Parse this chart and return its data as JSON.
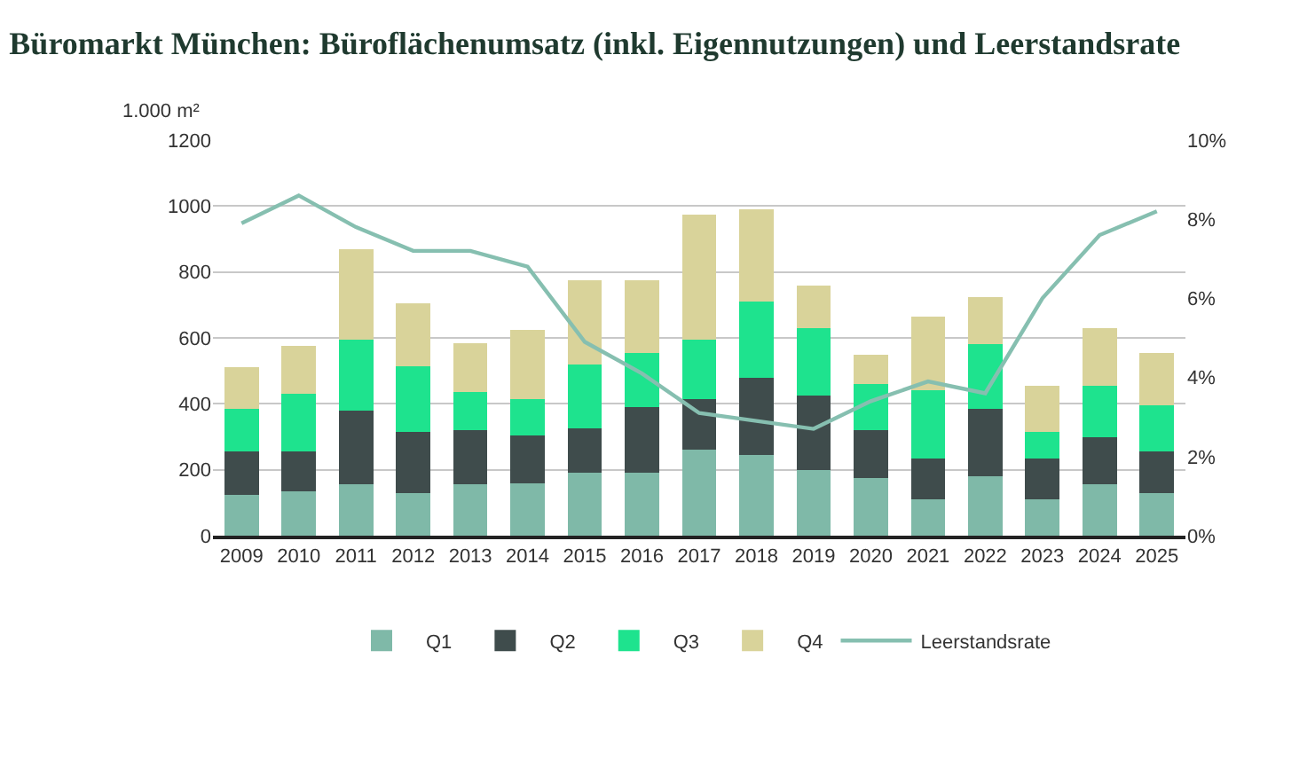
{
  "chart_data": {
    "type": "bar",
    "title": "Büromarkt München: Büroflächenumsatz (inkl. Eigennutzungen) und Leerstandsrate",
    "ylabel": "1.000 m²",
    "categories": [
      "2009",
      "2010",
      "2011",
      "2012",
      "2013",
      "2014",
      "2015",
      "2016",
      "2017",
      "2018",
      "2019",
      "2020",
      "2021",
      "2022",
      "2023",
      "2024",
      "2025"
    ],
    "stacked": true,
    "series": [
      {
        "name": "Q1",
        "color": "#7fb9a8",
        "values": [
          125,
          135,
          155,
          130,
          155,
          160,
          190,
          190,
          260,
          245,
          200,
          175,
          110,
          180,
          110,
          155,
          130
        ]
      },
      {
        "name": "Q2",
        "color": "#3f4c4c",
        "values": [
          130,
          120,
          225,
          185,
          165,
          145,
          135,
          200,
          155,
          235,
          225,
          145,
          125,
          205,
          125,
          145,
          125
        ]
      },
      {
        "name": "Q3",
        "color": "#1ee38e",
        "values": [
          130,
          175,
          215,
          200,
          115,
          110,
          195,
          165,
          180,
          230,
          205,
          140,
          205,
          195,
          80,
          155,
          140
        ]
      },
      {
        "name": "Q4",
        "color": "#d9d39a",
        "values": [
          125,
          145,
          275,
          190,
          150,
          210,
          255,
          220,
          380,
          280,
          130,
          90,
          225,
          145,
          140,
          175,
          160
        ]
      },
      {
        "name": "Leerstandsrate",
        "type": "line",
        "axis": "y2",
        "color": "#86bfb0",
        "values": [
          7.9,
          8.6,
          7.8,
          7.2,
          7.2,
          6.8,
          4.9,
          4.1,
          3.1,
          2.9,
          2.7,
          3.4,
          3.9,
          3.6,
          6.0,
          7.6,
          8.2
        ]
      }
    ],
    "ylim": [
      0,
      1200
    ],
    "yticks": [
      0,
      200,
      400,
      600,
      800,
      1000,
      1200
    ],
    "y2lim": [
      0,
      10
    ],
    "y2ticks": [
      {
        "value": 0,
        "label": "0%"
      },
      {
        "value": 2,
        "label": "2%"
      },
      {
        "value": 4,
        "label": "4%"
      },
      {
        "value": 6,
        "label": "6%"
      },
      {
        "value": 8,
        "label": "8%"
      },
      {
        "value": 10,
        "label": "10%"
      }
    ],
    "grid": "y",
    "legend": "bottom"
  }
}
